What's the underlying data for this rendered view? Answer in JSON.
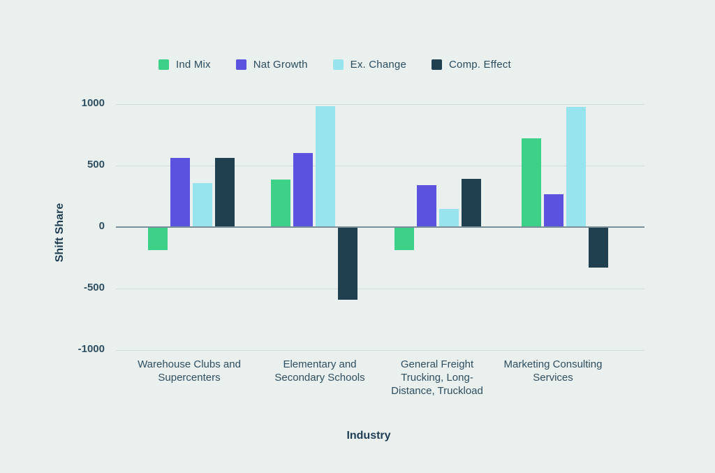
{
  "page": {
    "background_color": "#E9F0EE",
    "text_color": "#2B4B5E",
    "gridline_color": "#D2DDDB",
    "zero_line_color": "#7A8E99"
  },
  "chart_data": {
    "type": "bar",
    "title": "",
    "xlabel": "Industry",
    "ylabel": "Shift Share",
    "categories": [
      "Warehouse Clubs and Supercenters",
      "Elementary and Secondary Schools",
      "General Freight Trucking, Long-Distance, Truckload",
      "Marketing Consulting Services"
    ],
    "series": [
      {
        "name": "Ind Mix",
        "color": "#3DD089",
        "values": [
          -185,
          385,
          -190,
          720
        ]
      },
      {
        "name": "Nat Growth",
        "color": "#5B53E0",
        "values": [
          560,
          605,
          340,
          265
        ]
      },
      {
        "name": "Ex. Change",
        "color": "#98E4EE",
        "values": [
          360,
          985,
          150,
          975
        ]
      },
      {
        "name": "Comp. Effect",
        "color": "#204050",
        "values": [
          560,
          -590,
          390,
          -330
        ]
      }
    ],
    "ylim": [
      -1000,
      1000
    ],
    "yticks": [
      1000,
      500,
      0,
      -500,
      -1000
    ],
    "grid": true,
    "legend_position": "top"
  }
}
